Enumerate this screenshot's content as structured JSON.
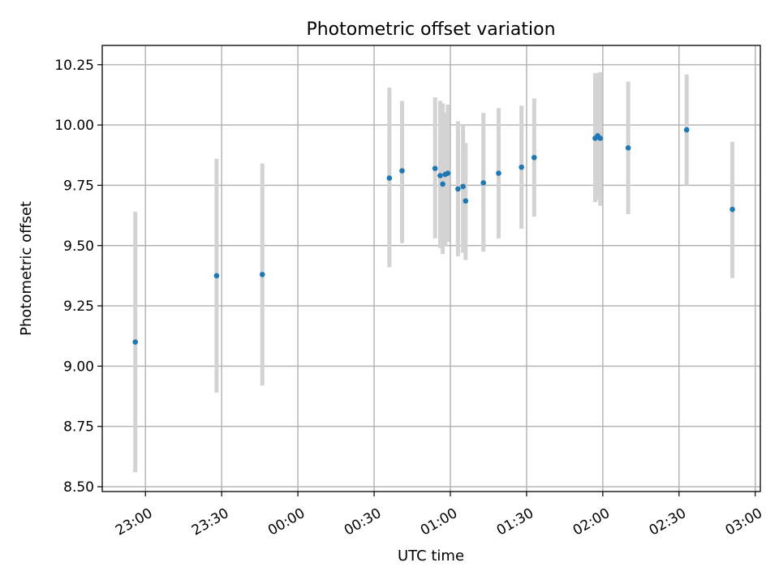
{
  "chart_data": {
    "type": "scatter",
    "title": "Photometric offset variation",
    "xlabel": "UTC time",
    "ylabel": "Photometric offset",
    "x_unit": "UTC clock time (HH:MM); 23:xx on the first day, 00:xx–03:xx on the following day",
    "xlim": [
      "22:43",
      "03:02"
    ],
    "ylim": [
      8.48,
      10.33
    ],
    "x_ticks": [
      "23:00",
      "23:30",
      "00:00",
      "00:30",
      "01:00",
      "01:30",
      "02:00",
      "02:30",
      "03:00"
    ],
    "y_ticks": [
      "8.50",
      "8.75",
      "9.00",
      "9.25",
      "9.50",
      "9.75",
      "10.00",
      "10.25"
    ],
    "grid": true,
    "colors": {
      "point": "#1f77b4",
      "errorbar": "#d3d3d3",
      "grid": "#b0b0b0"
    },
    "points": [
      {
        "x": "22:56",
        "y": 9.1,
        "lo": 8.56,
        "hi": 9.64
      },
      {
        "x": "23:28",
        "y": 9.375,
        "lo": 8.89,
        "hi": 9.86
      },
      {
        "x": "23:46",
        "y": 9.38,
        "lo": 8.92,
        "hi": 9.84
      },
      {
        "x": "00:36",
        "y": 9.78,
        "lo": 9.41,
        "hi": 10.155
      },
      {
        "x": "00:41",
        "y": 9.81,
        "lo": 9.51,
        "hi": 10.1
      },
      {
        "x": "00:54",
        "y": 9.82,
        "lo": 9.53,
        "hi": 10.115
      },
      {
        "x": "00:56",
        "y": 9.79,
        "lo": 9.49,
        "hi": 10.1
      },
      {
        "x": "00:57",
        "y": 9.755,
        "lo": 9.465,
        "hi": 10.09
      },
      {
        "x": "00:58",
        "y": 9.795,
        "lo": 9.5,
        "hi": 10.05
      },
      {
        "x": "00:59",
        "y": 9.8,
        "lo": 9.515,
        "hi": 10.085
      },
      {
        "x": "01:03",
        "y": 9.735,
        "lo": 9.455,
        "hi": 10.015
      },
      {
        "x": "01:05",
        "y": 9.745,
        "lo": 9.47,
        "hi": 10.0
      },
      {
        "x": "01:06",
        "y": 9.685,
        "lo": 9.44,
        "hi": 9.925
      },
      {
        "x": "01:13",
        "y": 9.76,
        "lo": 9.475,
        "hi": 10.05
      },
      {
        "x": "01:19",
        "y": 9.8,
        "lo": 9.53,
        "hi": 10.07
      },
      {
        "x": "01:28",
        "y": 9.825,
        "lo": 9.57,
        "hi": 10.08
      },
      {
        "x": "01:33",
        "y": 9.865,
        "lo": 9.62,
        "hi": 10.11
      },
      {
        "x": "01:57",
        "y": 9.945,
        "lo": 9.68,
        "hi": 10.215
      },
      {
        "x": "01:58",
        "y": 9.955,
        "lo": 9.69,
        "hi": 10.215
      },
      {
        "x": "01:59",
        "y": 9.945,
        "lo": 9.665,
        "hi": 10.22
      },
      {
        "x": "02:10",
        "y": 9.905,
        "lo": 9.63,
        "hi": 10.18
      },
      {
        "x": "02:33",
        "y": 9.98,
        "lo": 9.75,
        "hi": 10.21
      },
      {
        "x": "02:51",
        "y": 9.65,
        "lo": 9.365,
        "hi": 9.93
      }
    ]
  }
}
